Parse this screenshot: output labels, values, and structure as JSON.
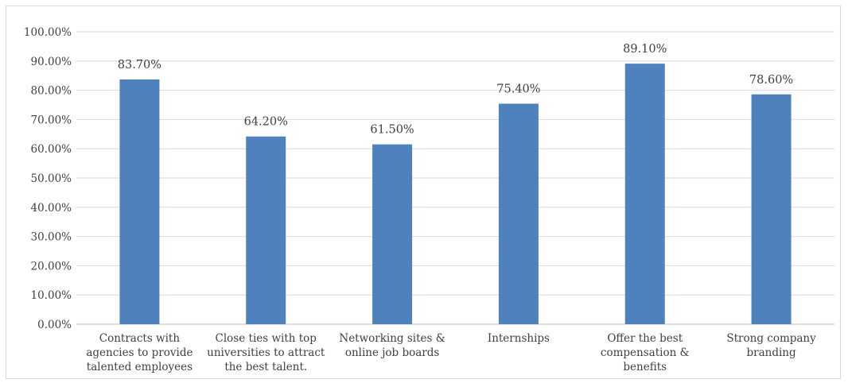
{
  "chart_data": {
    "type": "bar",
    "title": "",
    "xlabel": "",
    "ylabel": "",
    "categories": [
      [
        "Contracts with",
        "agencies to provide",
        "talented employees"
      ],
      [
        "Close ties with top",
        "universities to attract",
        "the best talent."
      ],
      [
        "Networking sites &",
        "online job boards"
      ],
      [
        "Internships"
      ],
      [
        "Offer the best",
        "compensation &",
        "benefits"
      ],
      [
        "Strong company",
        "branding"
      ]
    ],
    "values": [
      83.7,
      64.2,
      61.5,
      75.4,
      89.1,
      78.6
    ],
    "data_labels": [
      "83.70%",
      "64.20%",
      "61.50%",
      "75.40%",
      "89.10%",
      "78.60%"
    ],
    "ylim": [
      0,
      100
    ],
    "yticks": [
      0,
      10,
      20,
      30,
      40,
      50,
      60,
      70,
      80,
      90,
      100
    ],
    "ytick_labels": [
      "0.00%",
      "10.00%",
      "20.00%",
      "30.00%",
      "40.00%",
      "50.00%",
      "60.00%",
      "70.00%",
      "80.00%",
      "90.00%",
      "100.00%"
    ],
    "grid": true,
    "legend": "none",
    "bar_color": "#4F81BD"
  }
}
